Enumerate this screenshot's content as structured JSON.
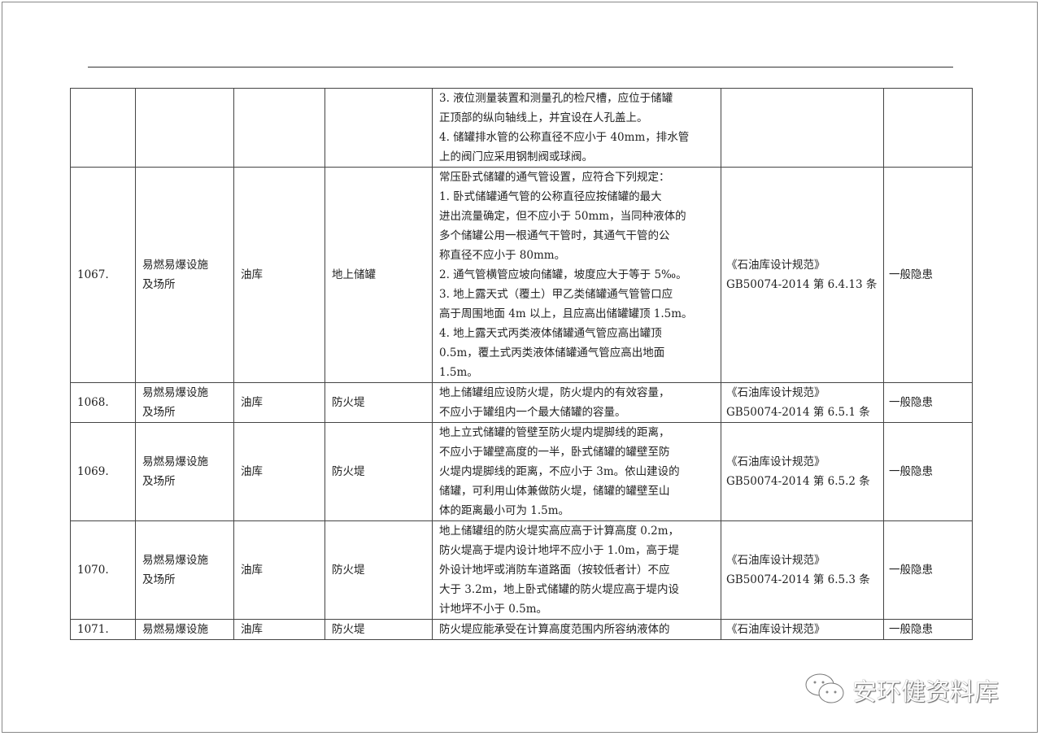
{
  "rows": [
    {
      "no": "",
      "category": "",
      "place": "",
      "item": "",
      "req": [
        "3. 液位测量装置和测量孔的检尺槽，应位于储罐",
        "正顶部的纵向轴线上，并宜设在人孔盖上。",
        "4. 储罐排水管的公称直径不应小于 40mm，排水管",
        "上的阀门应采用钢制阀或球阀。"
      ],
      "basis": [],
      "level": ""
    },
    {
      "no": "1067.",
      "category": [
        "易燃易爆设施",
        "及场所"
      ],
      "place": "油库",
      "item": "地上储罐",
      "req": [
        "常压卧式储罐的通气管设置，应符合下列规定：",
        "1. 卧式储罐通气管的公称直径应按储罐的最大",
        "进出流量确定，但不应小于 50mm，当同种液体的",
        "多个储罐公用一根通气干管时，其通气干管的公",
        "称直径不应小于 80mm。",
        "2. 通气管横管应坡向储罐，坡度应大于等于 5‰。",
        "3. 地上露天式（覆土）甲乙类储罐通气管管口应",
        "高于周围地面 4m 以上，且应高出储罐罐顶 1.5m。",
        "4. 地上露天式丙类液体储罐通气管应高出罐顶",
        "0.5m，覆土式丙类液体储罐通气管应高出地面",
        "1.5m。"
      ],
      "basis": [
        "《石油库设计规范》",
        "GB50074-2014 第 6.4.13 条"
      ],
      "level": "一般隐患"
    },
    {
      "no": "1068.",
      "category": [
        "易燃易爆设施",
        "及场所"
      ],
      "place": "油库",
      "item": "防火堤",
      "req": [
        "地上储罐组应设防火堤，防火堤内的有效容量，",
        "不应小于罐组内一个最大储罐的容量。"
      ],
      "basis": [
        "《石油库设计规范》",
        "GB50074-2014 第 6.5.1 条"
      ],
      "level": "一般隐患"
    },
    {
      "no": "1069.",
      "category": [
        "易燃易爆设施",
        "及场所"
      ],
      "place": "油库",
      "item": "防火堤",
      "req": [
        "地上立式储罐的管壁至防火堤内堤脚线的距离，",
        "不应小于罐壁高度的一半，卧式储罐的罐壁至防",
        "火堤内堤脚线的距离，不应小于 3m。依山建设的",
        "储罐，可利用山体兼做防火堤，储罐的罐壁至山",
        "体的距离最小可为 1.5m。"
      ],
      "basis": [
        "《石油库设计规范》",
        "GB50074-2014 第 6.5.2 条"
      ],
      "level": "一般隐患"
    },
    {
      "no": "1070.",
      "category": [
        "易燃易爆设施",
        "及场所"
      ],
      "place": "油库",
      "item": "防火堤",
      "req": [
        "地上储罐组的防火堤实高应高于计算高度 0.2m，",
        "防火堤高于堤内设计地坪不应小于 1.0m，高于堤",
        "外设计地坪或消防车道路面（按较低者计）不应",
        "大于 3.2m，地上卧式储罐的防火堤应高于堤内设",
        "计地坪不小于 0.5m。"
      ],
      "basis": [
        "《石油库设计规范》",
        "GB50074-2014 第 6.5.3 条"
      ],
      "level": "一般隐患"
    },
    {
      "no": "1071.",
      "category": [
        "易燃易爆设施"
      ],
      "place": "油库",
      "item": "防火堤",
      "req": [
        "防火堤应能承受在计算高度范围内所容纳液体的"
      ],
      "basis": [
        "《石油库设计规范》"
      ],
      "level": "一般隐患"
    }
  ],
  "watermark": {
    "text": "安环健资料库",
    "icon": "wechat-icon"
  }
}
